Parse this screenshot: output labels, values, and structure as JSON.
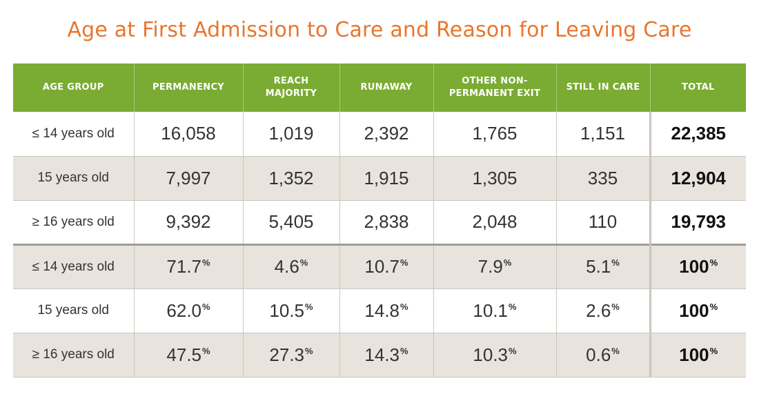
{
  "chart_data": {
    "type": "table",
    "title": "Age at First Admission to Care and Reason for Leaving Care",
    "columns": [
      "AGE GROUP",
      "PERMANENCY",
      "REACH MAJORITY",
      "RUNAWAY",
      "OTHER NON-PERMANENT EXIT",
      "STILL IN CARE",
      "TOTAL"
    ],
    "pct_symbol": "%",
    "rows": [
      {
        "group": "≤ 14 years old",
        "values": [
          "16,058",
          "1,019",
          "2,392",
          "1,765",
          "1,151"
        ],
        "total": "22,385",
        "is_percent": false
      },
      {
        "group": "15 years old",
        "values": [
          "7,997",
          "1,352",
          "1,915",
          "1,305",
          "335"
        ],
        "total": "12,904",
        "is_percent": false
      },
      {
        "group": "≥ 16 years old",
        "values": [
          "9,392",
          "5,405",
          "2,838",
          "2,048",
          "110"
        ],
        "total": "19,793",
        "is_percent": false
      },
      {
        "group": "≤ 14 years old",
        "values": [
          "71.7",
          "4.6",
          "10.7",
          "7.9",
          "5.1"
        ],
        "total": "100",
        "is_percent": true
      },
      {
        "group": "15 years old",
        "values": [
          "62.0",
          "10.5",
          "14.8",
          "10.1",
          "2.6"
        ],
        "total": "100",
        "is_percent": true
      },
      {
        "group": "≥ 16 years old",
        "values": [
          "47.5",
          "27.3",
          "14.3",
          "10.3",
          "0.6"
        ],
        "total": "100",
        "is_percent": true
      }
    ]
  },
  "colors": {
    "title": "#e8762d",
    "header_bg": "#7aab33",
    "header_text": "#ffffff",
    "shaded_row": "#e8e3dc",
    "grid_line": "#c9c6c0"
  }
}
